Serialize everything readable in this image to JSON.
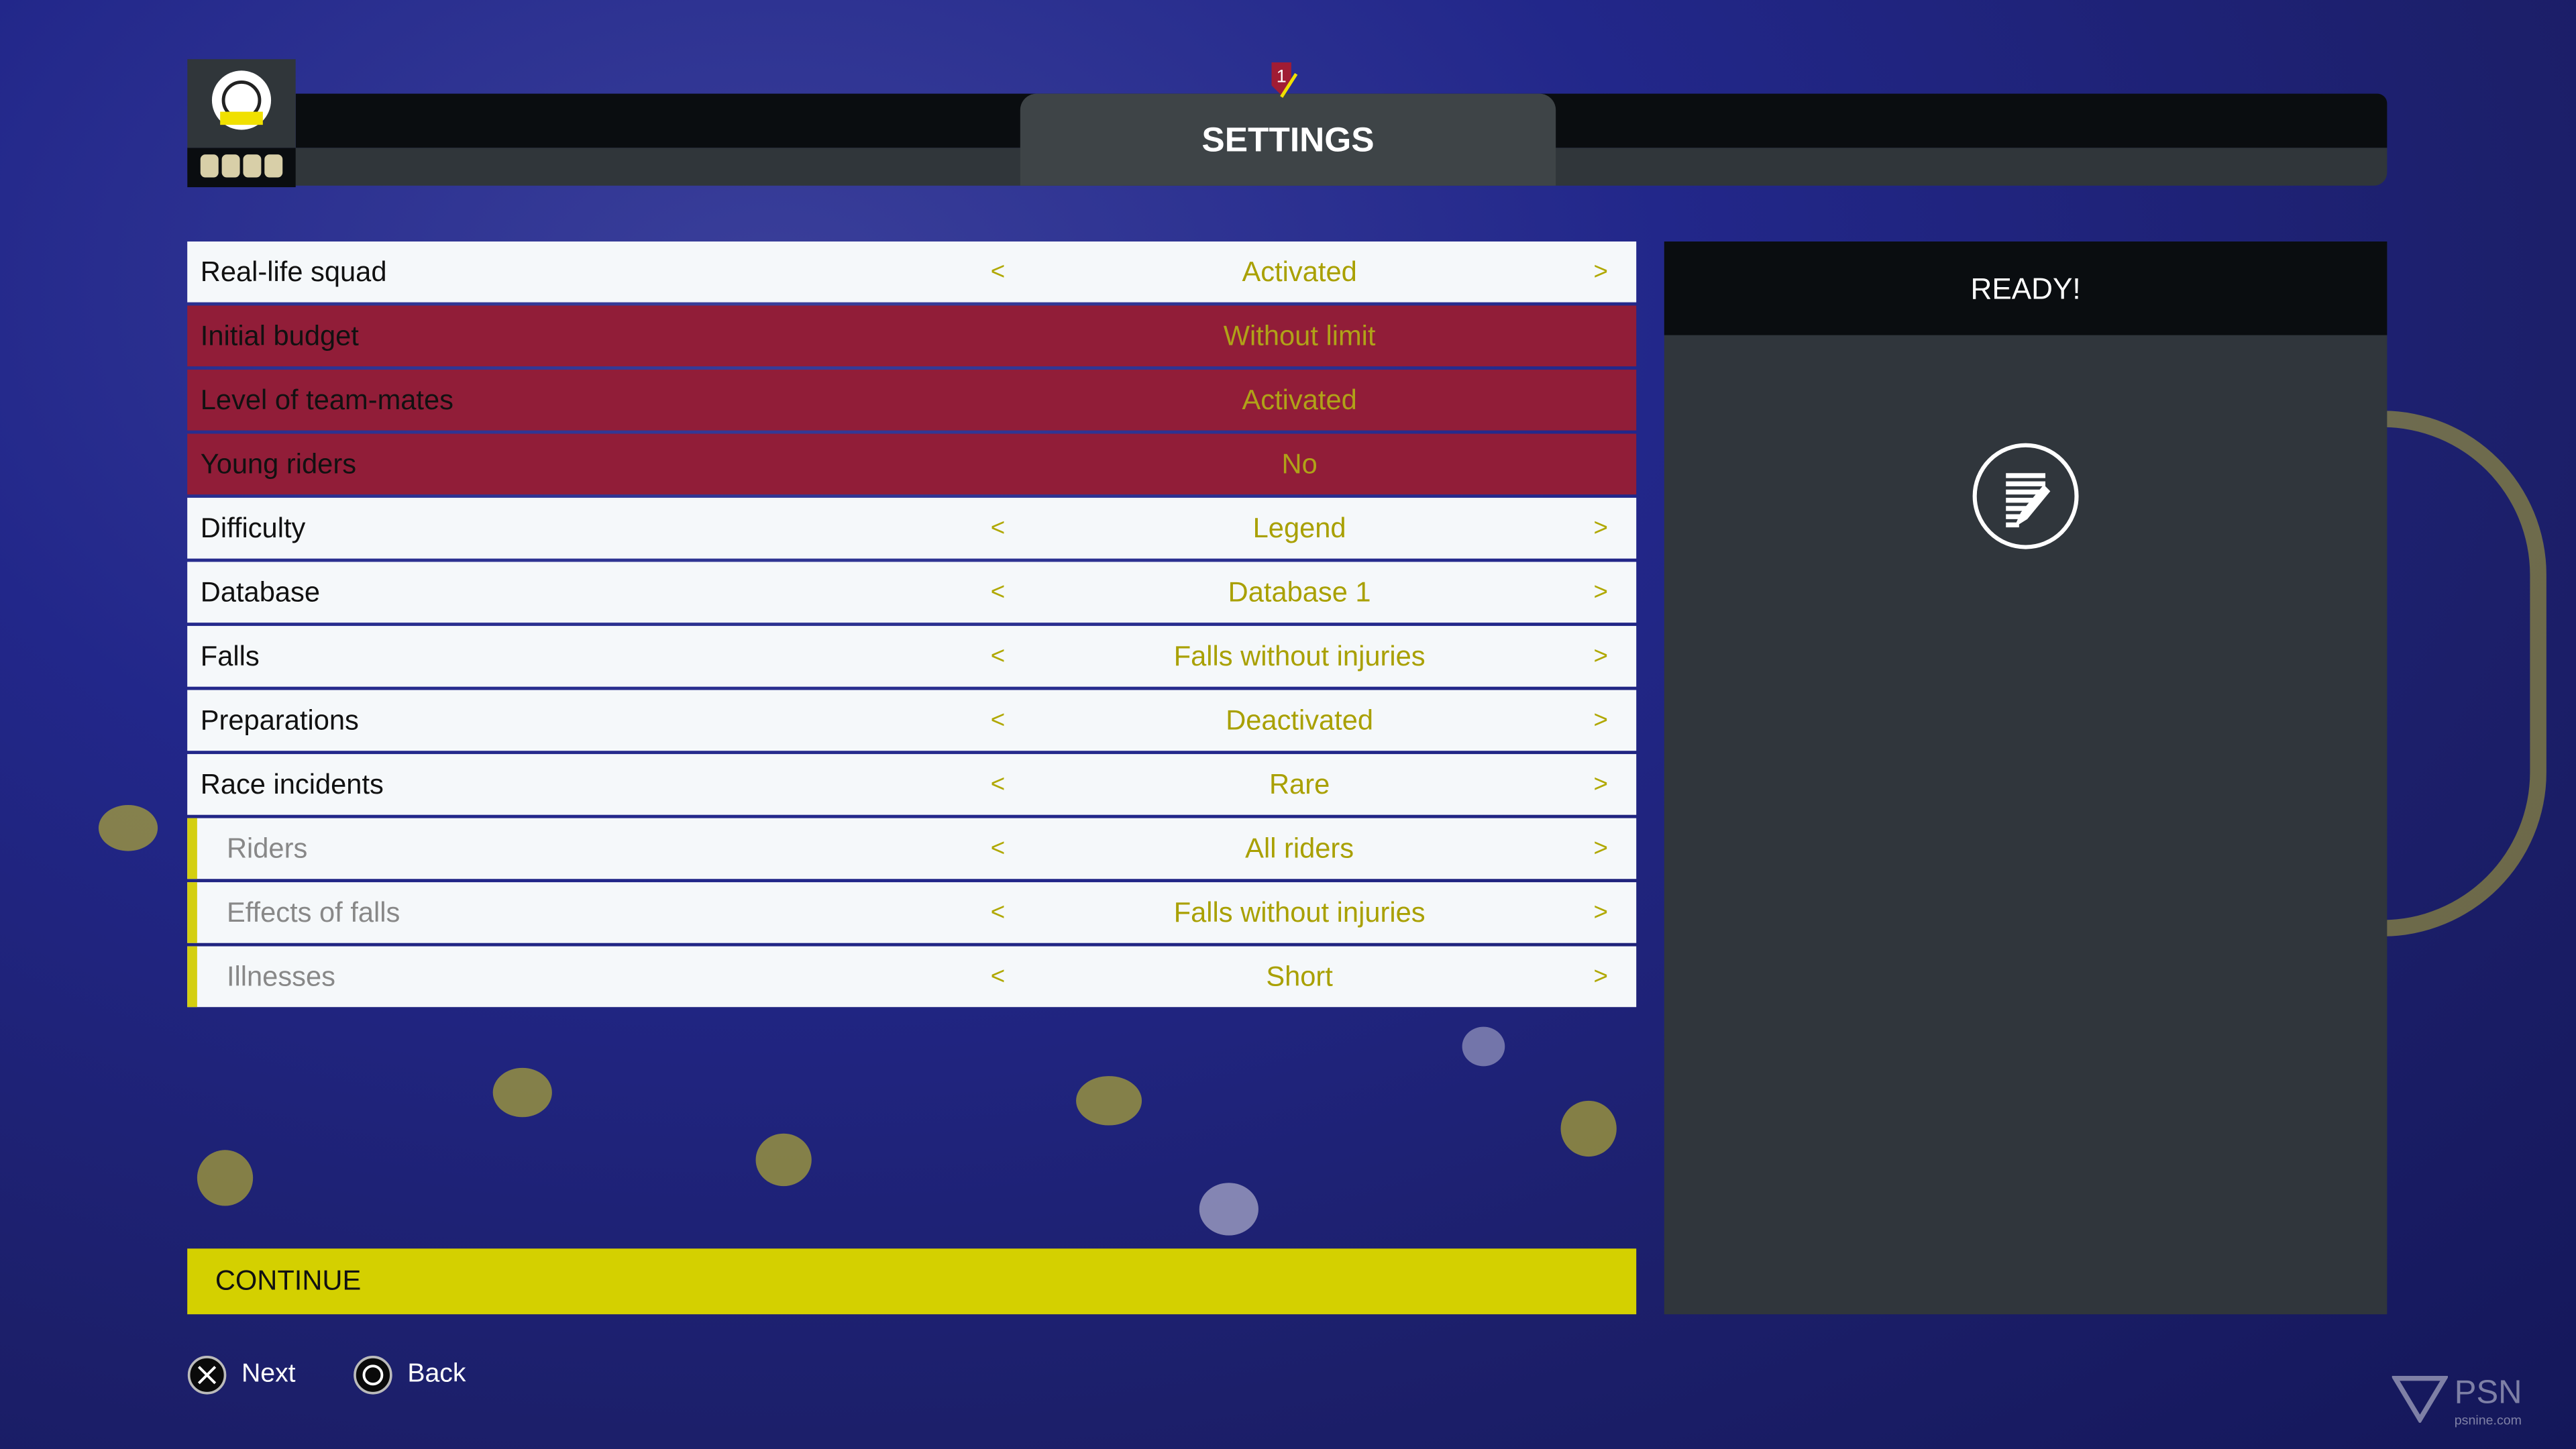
{
  "header": {
    "title": "SETTINGS",
    "badge": "1"
  },
  "settings": [
    {
      "label": "Real-life squad",
      "value": "Activated",
      "locked": false,
      "sub": false
    },
    {
      "label": "Initial budget",
      "value": "Without limit",
      "locked": true,
      "sub": false
    },
    {
      "label": "Level of team-mates",
      "value": "Activated",
      "locked": true,
      "sub": false
    },
    {
      "label": "Young riders",
      "value": "No",
      "locked": true,
      "sub": false
    },
    {
      "label": "Difficulty",
      "value": "Legend",
      "locked": false,
      "sub": false
    },
    {
      "label": "Database",
      "value": "Database 1",
      "locked": false,
      "sub": false
    },
    {
      "label": "Falls",
      "value": "Falls without injuries",
      "locked": false,
      "sub": false
    },
    {
      "label": "Preparations",
      "value": "Deactivated",
      "locked": false,
      "sub": false
    },
    {
      "label": "Race incidents",
      "value": "Rare",
      "locked": false,
      "sub": false
    },
    {
      "label": "Riders",
      "value": "All riders",
      "locked": false,
      "sub": true
    },
    {
      "label": "Effects of falls",
      "value": "Falls without injuries",
      "locked": false,
      "sub": true
    },
    {
      "label": "Illnesses",
      "value": "Short",
      "locked": false,
      "sub": true
    }
  ],
  "arrows": {
    "left": "<",
    "right": ">"
  },
  "panel": {
    "title": "READY!",
    "icon": "notes-edit-icon"
  },
  "continue_label": "CONTINUE",
  "footer": {
    "next": "Next",
    "back": "Back"
  },
  "watermark": {
    "text": "PSN",
    "sub": "psnine.com"
  },
  "colors": {
    "accent": "#d4d000",
    "locked_row": "#911d38",
    "value_text": "#a9a000",
    "panel": "#30363c"
  }
}
